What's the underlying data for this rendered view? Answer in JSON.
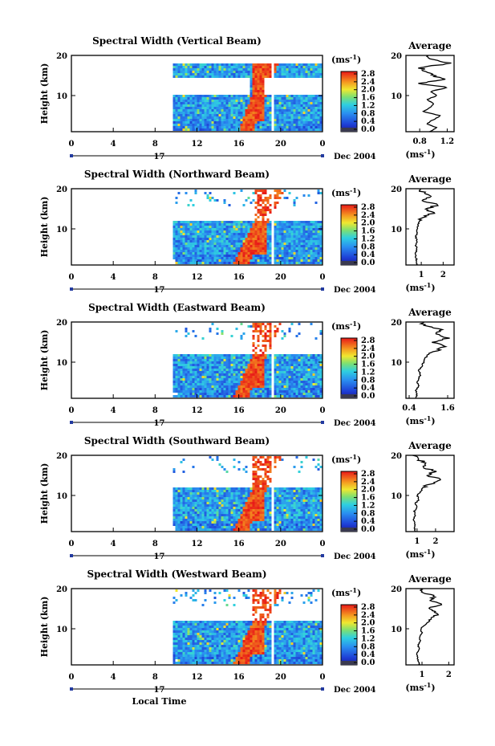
{
  "chart_data": [
    {
      "type": "heatmap",
      "title": "Spectral Width (Vertical Beam)",
      "ylabel": "Height (km)",
      "xticks": [
        "0",
        "4",
        "8",
        "12",
        "16",
        "20",
        "0"
      ],
      "yticks": [
        "20",
        "10"
      ],
      "date_label": "17",
      "date_suffix": "Dec 2004",
      "xlim": [
        0,
        24
      ],
      "ylim": [
        1,
        20
      ],
      "data_start_hour": 9.7,
      "gap_hour": 19.1,
      "echo_top_km_before": 18.5,
      "clear_band_km": [
        10.5,
        14.5
      ],
      "enhanced_band": {
        "x_start": 16.5,
        "x_end": 18.4,
        "color": "red"
      },
      "colorbar": {
        "unit": "(ms",
        "unit_sup": "-1",
        "unit_close": ")",
        "ticks": [
          "2.8",
          "2.4",
          "2.0",
          "1.6",
          "1.2",
          "0.8",
          "0.4",
          "0.0"
        ],
        "min": 0,
        "max": 2.8
      },
      "profile": {
        "title": "Average",
        "xlabel": "(ms",
        "xlabel_sup": "-1",
        "xlabel_close": ")",
        "xticks": [
          "0.8",
          "1.2"
        ],
        "yticks": [
          "20",
          "10"
        ],
        "xlim": [
          0.6,
          1.3
        ],
        "ylim": [
          1,
          20
        ],
        "values": [
          0.95,
          1.05,
          0.9,
          1.0,
          1.1,
          0.85,
          0.95,
          1.0,
          0.9,
          1.05,
          0.95,
          1.2,
          0.8,
          1.15,
          1.0,
          0.9,
          0.8,
          1.25,
          1.0,
          0.9
        ]
      }
    },
    {
      "type": "heatmap",
      "title": "Spectral Width (Northward Beam)",
      "ylabel": "Height (km)",
      "xticks": [
        "0",
        "4",
        "8",
        "12",
        "16",
        "20",
        "0"
      ],
      "yticks": [
        "20",
        "10"
      ],
      "date_label": "17",
      "date_suffix": "Dec 2004",
      "xlim": [
        0,
        24
      ],
      "ylim": [
        1,
        20
      ],
      "data_start_hour": 9.7,
      "gap_hour": 19.1,
      "echo_top_km": 12,
      "enhanced_band": {
        "x_start": 16,
        "x_end": 18.5,
        "color": "red"
      },
      "colorbar": {
        "unit": "(ms",
        "unit_sup": "-1",
        "unit_close": ")",
        "ticks": [
          "2.8",
          "2.4",
          "2.0",
          "1.6",
          "1.2",
          "0.8",
          "0.4",
          "0.0"
        ],
        "min": 0,
        "max": 2.8
      },
      "profile": {
        "title": "Average",
        "xlabel": "(ms",
        "xlabel_sup": "-1",
        "xlabel_close": ")",
        "xticks": [
          "1",
          "2"
        ],
        "yticks": [
          "20",
          "10"
        ],
        "xlim": [
          0.3,
          2.5
        ],
        "ylim": [
          1,
          20
        ],
        "values": [
          0.8,
          0.8,
          0.75,
          0.75,
          0.8,
          0.75,
          0.8,
          0.75,
          0.8,
          0.8,
          0.85,
          0.9,
          1.1,
          1.6,
          1.2,
          1.8,
          1.0,
          1.5,
          1.1,
          0.9
        ]
      }
    },
    {
      "type": "heatmap",
      "title": "Spectral Width (Eastward Beam)",
      "ylabel": "Height (km)",
      "xticks": [
        "0",
        "4",
        "8",
        "12",
        "16",
        "20",
        "0"
      ],
      "yticks": [
        "20",
        "10"
      ],
      "date_label": "17",
      "date_suffix": "Dec 2004",
      "xlim": [
        0,
        24
      ],
      "ylim": [
        1,
        20
      ],
      "data_start_hour": 9.7,
      "gap_hour": 19.1,
      "echo_top_km": 12.5,
      "enhanced_band": {
        "x_start": 16,
        "x_end": 18.3,
        "color": "red"
      },
      "colorbar": {
        "unit": "(ms",
        "unit_sup": "-1",
        "unit_close": ")",
        "ticks": [
          "2.8",
          "2.4",
          "2.0",
          "1.6",
          "1.2",
          "0.8",
          "0.4",
          "0.0"
        ],
        "min": 0,
        "max": 2.8
      },
      "profile": {
        "title": "Average",
        "xlabel": "(ms",
        "xlabel_sup": "-1",
        "xlabel_close": ")",
        "xticks": [
          "0.4",
          "1.6"
        ],
        "yticks": [
          "20",
          "10"
        ],
        "xlim": [
          0.3,
          1.8
        ],
        "ylim": [
          1,
          20
        ],
        "values": [
          0.6,
          0.65,
          0.6,
          0.7,
          0.65,
          0.7,
          0.75,
          0.7,
          0.8,
          0.85,
          0.9,
          1.0,
          1.3,
          1.5,
          1.1,
          1.6,
          1.2,
          1.4,
          0.9,
          0.8
        ]
      }
    },
    {
      "type": "heatmap",
      "title": "Spectral Width (Southward Beam)",
      "ylabel": "Height (km)",
      "xticks": [
        "0",
        "4",
        "8",
        "12",
        "16",
        "20",
        "0"
      ],
      "yticks": [
        "20",
        "10"
      ],
      "date_label": "17",
      "date_suffix": "Dec 2004",
      "xlim": [
        0,
        24
      ],
      "ylim": [
        1,
        20
      ],
      "data_start_hour": 9.7,
      "gap_hour": 19.1,
      "echo_top_km": 12,
      "enhanced_band": {
        "x_start": 16,
        "x_end": 18.3,
        "color": "red"
      },
      "colorbar": {
        "unit": "(ms",
        "unit_sup": "-1",
        "unit_close": ")",
        "ticks": [
          "2.8",
          "2.4",
          "2.0",
          "1.6",
          "1.2",
          "0.8",
          "0.4",
          "0.0"
        ],
        "min": 0,
        "max": 2.8
      },
      "profile": {
        "title": "Average",
        "xlabel": "(ms",
        "xlabel_sup": "-1",
        "xlabel_close": ")",
        "xticks": [
          "1",
          "2"
        ],
        "yticks": [
          "20",
          "10"
        ],
        "xlim": [
          0.4,
          3.0
        ],
        "ylim": [
          1,
          20
        ],
        "values": [
          0.9,
          0.85,
          0.9,
          0.8,
          0.9,
          0.85,
          1.0,
          0.9,
          1.1,
          1.0,
          1.2,
          1.3,
          1.8,
          2.4,
          1.5,
          2.0,
          1.3,
          1.6,
          1.0,
          0.9
        ]
      }
    },
    {
      "type": "heatmap",
      "title": "Spectral Width (Westward Beam)",
      "ylabel": "Height (km)",
      "xticks": [
        "0",
        "4",
        "8",
        "12",
        "16",
        "20",
        "0"
      ],
      "yticks": [
        "20",
        "10"
      ],
      "date_label": "17",
      "date_suffix": "Dec 2004",
      "xlabel": "Local Time",
      "xlim": [
        0,
        24
      ],
      "ylim": [
        1,
        20
      ],
      "data_start_hour": 9.7,
      "gap_hour": 19.1,
      "echo_top_km": 12,
      "enhanced_band": {
        "x_start": 16,
        "x_end": 18.3,
        "color": "red"
      },
      "colorbar": {
        "unit": "(ms",
        "unit_sup": "-1",
        "unit_close": ")",
        "ticks": [
          "2.8",
          "2.4",
          "2.0",
          "1.6",
          "1.2",
          "0.8",
          "0.4",
          "0.0"
        ],
        "min": 0,
        "max": 2.8
      },
      "profile": {
        "title": "Average",
        "xlabel": "(ms",
        "xlabel_sup": "-1",
        "xlabel_close": ")",
        "xticks": [
          "1",
          "2"
        ],
        "yticks": [
          "20",
          "10"
        ],
        "xlim": [
          0.4,
          2.2
        ],
        "ylim": [
          1,
          20
        ],
        "values": [
          0.9,
          0.85,
          0.85,
          0.8,
          0.9,
          0.85,
          0.95,
          0.9,
          1.0,
          0.95,
          1.1,
          1.3,
          1.5,
          1.6,
          1.2,
          1.8,
          1.3,
          1.5,
          1.1,
          1.0
        ]
      }
    }
  ]
}
